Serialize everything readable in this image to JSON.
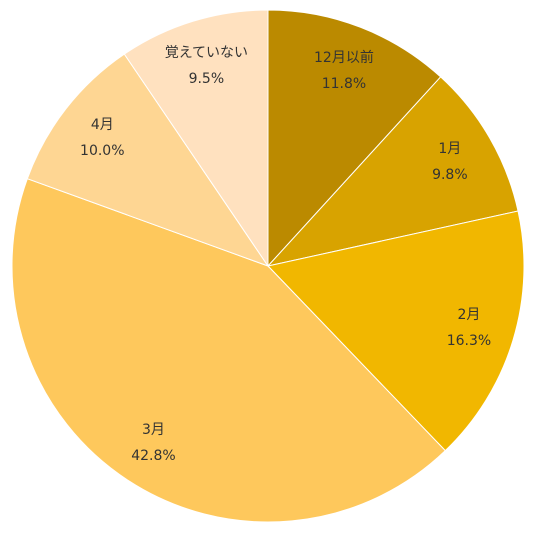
{
  "chart_data": {
    "type": "pie",
    "categories": [
      "12月以前",
      "1月",
      "2月",
      "3月",
      "4月",
      "覚えていない"
    ],
    "values": [
      11.8,
      9.8,
      16.3,
      42.8,
      10.0,
      9.5
    ],
    "value_labels": [
      "11.8%",
      "9.8%",
      "16.3%",
      "42.8%",
      "10.0%",
      "9.5%"
    ],
    "colors": [
      "#bb8a00",
      "#d8a300",
      "#f1b700",
      "#fec85c",
      "#fed693",
      "#ffe1bf"
    ]
  }
}
